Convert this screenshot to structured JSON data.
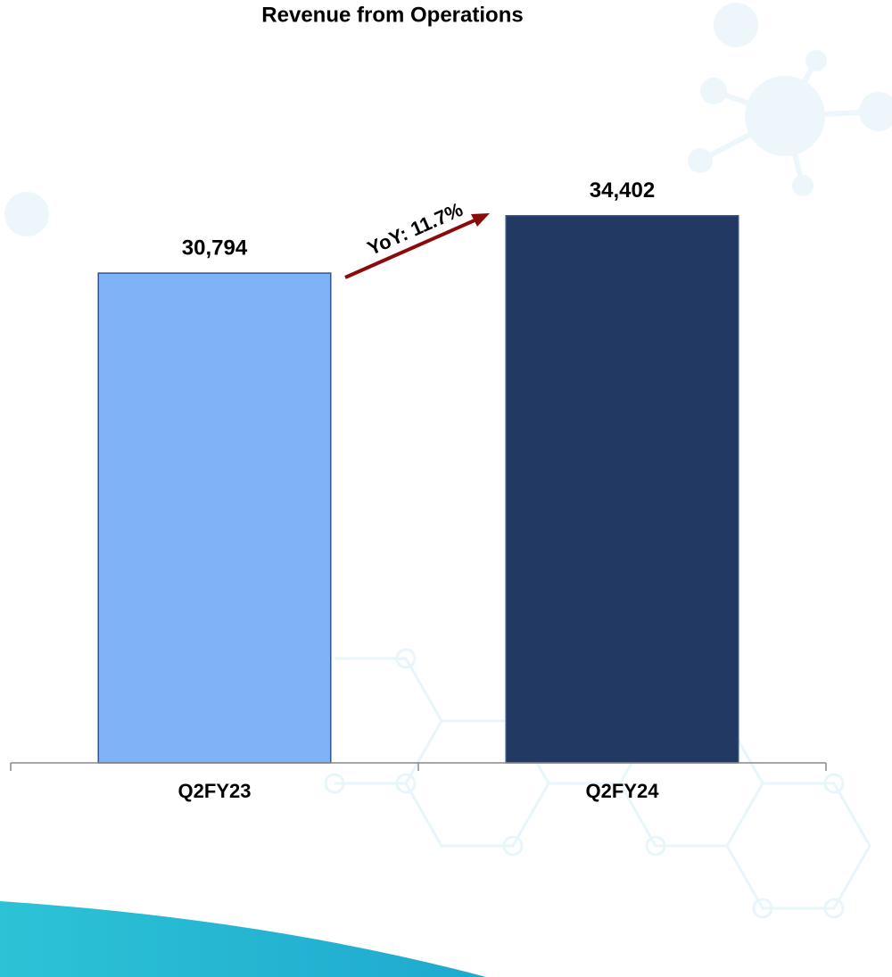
{
  "chart_data": {
    "type": "bar",
    "title": "Revenue from Operations",
    "categories": [
      "Q2FY23",
      "Q2FY24"
    ],
    "values": [
      30794,
      34402
    ],
    "value_labels": [
      "30,794",
      "34,402"
    ],
    "colors": [
      "#7fb3f7",
      "#223a63"
    ],
    "ylim": [
      0,
      40000
    ],
    "annotation": "YoY: 11.7%"
  }
}
